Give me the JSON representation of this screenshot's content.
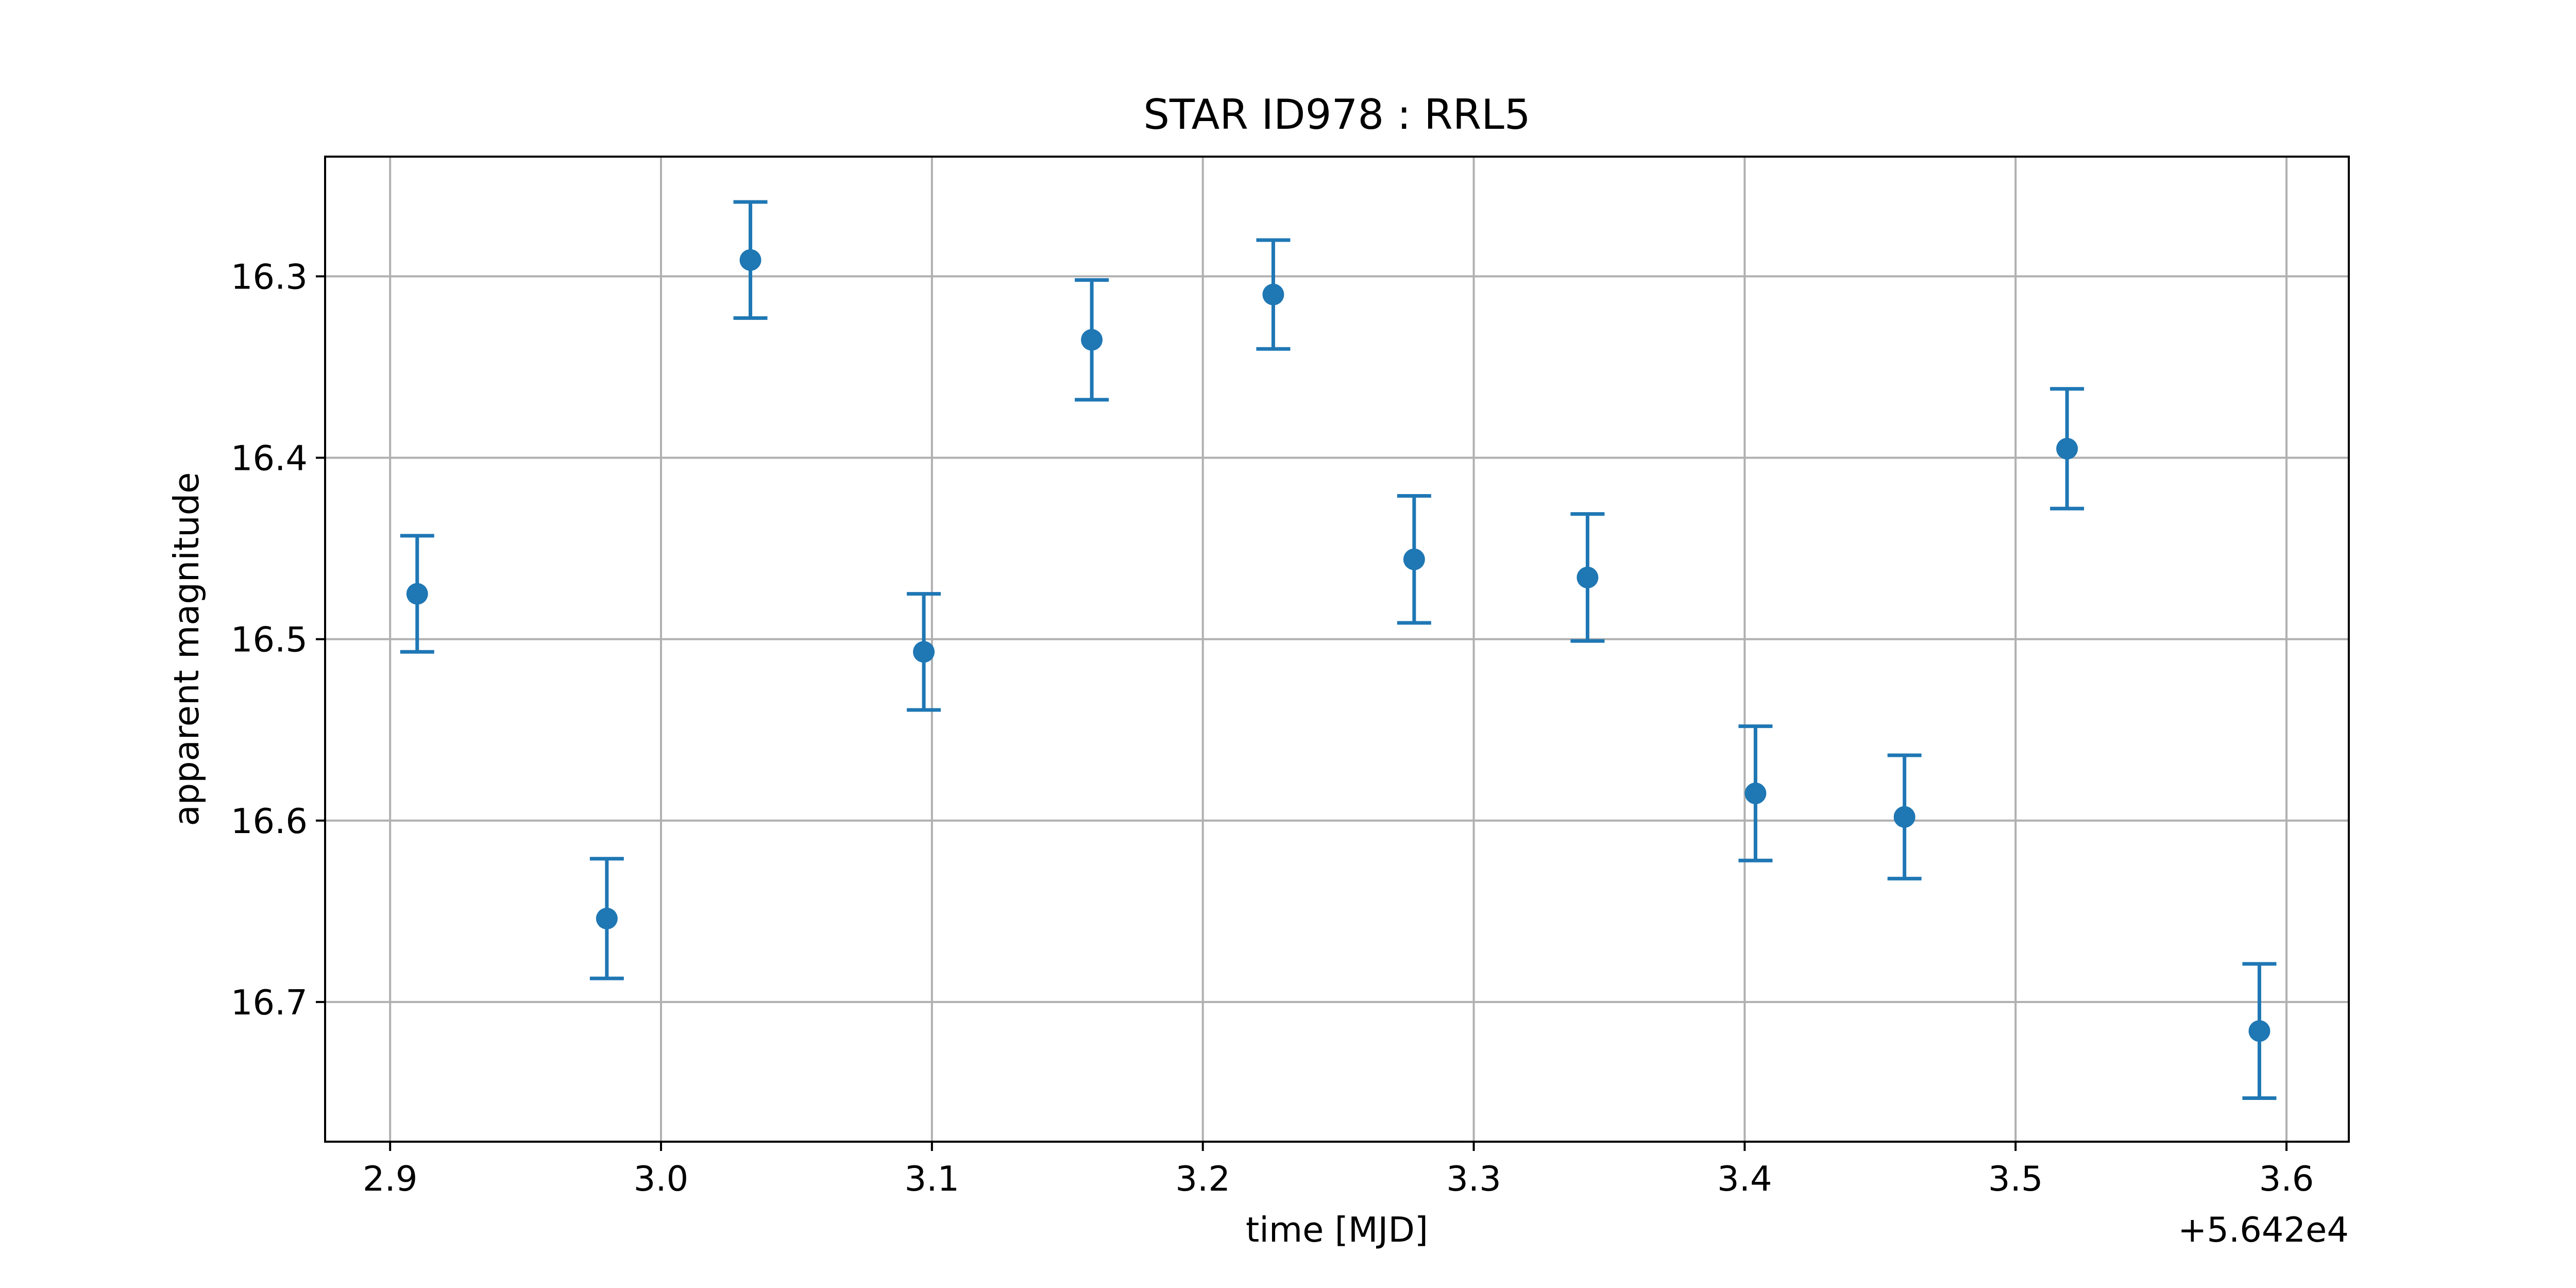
{
  "chart_data": {
    "type": "scatter",
    "title": "STAR ID978 : RRL5",
    "xlabel": "time [MJD]",
    "ylabel": "apparent magnitude",
    "x_offset_label": "+5.642e4",
    "xlim": [
      2.876,
      3.623
    ],
    "ylim": [
      16.777,
      16.234
    ],
    "y_inverted": true,
    "grid": true,
    "x_ticks": [
      2.9,
      3.0,
      3.1,
      3.2,
      3.3,
      3.4,
      3.5,
      3.6
    ],
    "x_tick_labels": [
      "2.9",
      "3.0",
      "3.1",
      "3.2",
      "3.3",
      "3.4",
      "3.5",
      "3.6"
    ],
    "y_ticks": [
      16.3,
      16.4,
      16.5,
      16.6,
      16.7
    ],
    "y_tick_labels": [
      "16.3",
      "16.4",
      "16.5",
      "16.6",
      "16.7"
    ],
    "color": "#1f77b4",
    "points": [
      {
        "x": 2.91,
        "y": 16.475,
        "err": 0.032
      },
      {
        "x": 2.98,
        "y": 16.654,
        "err": 0.033
      },
      {
        "x": 3.033,
        "y": 16.291,
        "err": 0.032
      },
      {
        "x": 3.097,
        "y": 16.507,
        "err": 0.032
      },
      {
        "x": 3.159,
        "y": 16.335,
        "err": 0.033
      },
      {
        "x": 3.226,
        "y": 16.31,
        "err": 0.03
      },
      {
        "x": 3.278,
        "y": 16.456,
        "err": 0.035
      },
      {
        "x": 3.342,
        "y": 16.466,
        "err": 0.035
      },
      {
        "x": 3.404,
        "y": 16.585,
        "err": 0.037
      },
      {
        "x": 3.459,
        "y": 16.598,
        "err": 0.034
      },
      {
        "x": 3.519,
        "y": 16.395,
        "err": 0.033
      },
      {
        "x": 3.59,
        "y": 16.716,
        "err": 0.037
      }
    ]
  }
}
